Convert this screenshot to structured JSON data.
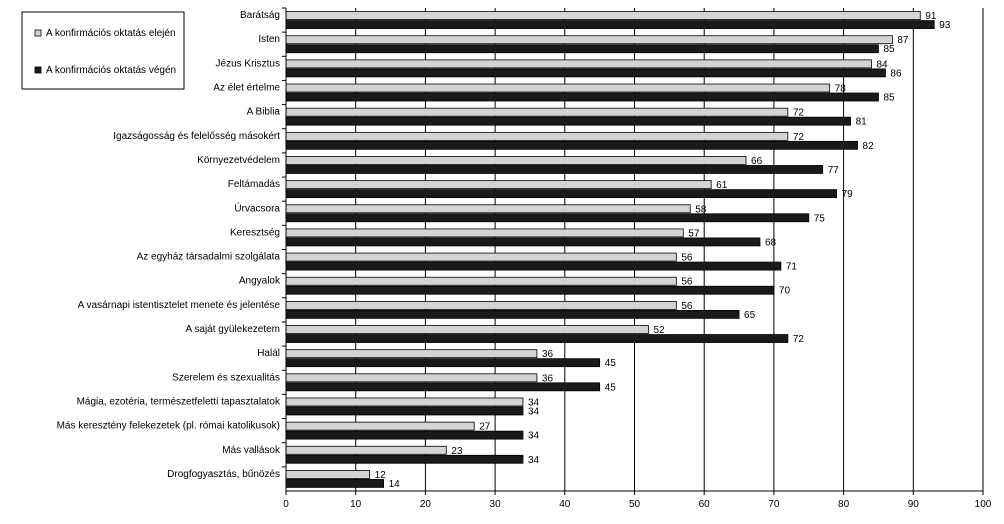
{
  "chart_data": {
    "type": "bar",
    "orientation": "horizontal",
    "title": "",
    "xlabel": "",
    "ylabel": "",
    "xlim": [
      0,
      100
    ],
    "xticks": [
      "0",
      "10",
      "20",
      "30",
      "40",
      "50",
      "60",
      "70",
      "80",
      "90",
      "100"
    ],
    "grid": true,
    "legend_position": "top-left",
    "categories": [
      "Barátság",
      "Isten",
      "Jézus Krisztus",
      "Az élet értelme",
      "A Biblia",
      "Igazságosság és felelősség másokért",
      "Környezetvédelem",
      "Feltámadás",
      "Úrvacsora",
      "Keresztség",
      "Az egyház társadalmi szolgálata",
      "Angyalok",
      "A vasárnapi istentisztelet menete és jelentése",
      "A saját gyülekezetem",
      "Halál",
      "Szerelem és szexualitás",
      "Mágia, ezotéria, természetfeletti tapasztalatok",
      "Más keresztény felekezetek (pl. római katolikusok)",
      "Más vallások",
      "Drogfogyasztás, bűnözés"
    ],
    "series": [
      {
        "name": "A konfirmációs oktatás elején",
        "color": "#d4d4d4",
        "values": [
          91,
          87,
          84,
          78,
          72,
          72,
          66,
          61,
          58,
          57,
          56,
          56,
          56,
          52,
          36,
          36,
          34,
          27,
          23,
          12
        ]
      },
      {
        "name": "A konfirmációs oktatás végén",
        "color": "#1a1a1a",
        "values": [
          93,
          85,
          86,
          85,
          81,
          82,
          77,
          79,
          75,
          68,
          71,
          70,
          65,
          72,
          45,
          45,
          34,
          34,
          34,
          14
        ]
      }
    ]
  }
}
